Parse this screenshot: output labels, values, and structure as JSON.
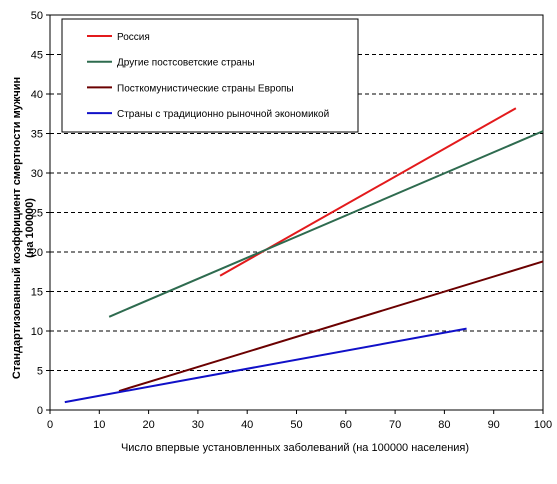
{
  "chart_data": {
    "type": "line",
    "title": "",
    "xlabel": "Число впервые установленных заболеваний (на 100000 населения)",
    "ylabel_line1": "Стандартизованный коэффициент смертности мужчин",
    "ylabel_line2": "(на 100000)",
    "xlim": [
      0,
      100
    ],
    "ylim": [
      0,
      50
    ],
    "xticks": [
      0,
      10,
      20,
      30,
      40,
      50,
      60,
      70,
      80,
      90,
      100
    ],
    "yticks": [
      0,
      5,
      10,
      15,
      20,
      25,
      30,
      35,
      40,
      45,
      50
    ],
    "grid": "horizontal dashed",
    "legend_position": "top-left",
    "series": [
      {
        "name": "Россия",
        "color": "#e31a1c",
        "x": [
          34.5,
          94.5
        ],
        "y": [
          17.0,
          38.2
        ]
      },
      {
        "name": "Другие постсоветские страны",
        "color": "#2e6b4f",
        "x": [
          12.0,
          100.0
        ],
        "y": [
          11.8,
          35.3
        ]
      },
      {
        "name": "Посткомунистические страны Европы",
        "color": "#6b0000",
        "x": [
          14.0,
          100.0
        ],
        "y": [
          2.4,
          18.8
        ]
      },
      {
        "name": "Страны с традиционно рыночной экономикой",
        "color": "#1010c8",
        "x": [
          3.0,
          84.5
        ],
        "y": [
          1.0,
          10.3
        ]
      }
    ]
  }
}
